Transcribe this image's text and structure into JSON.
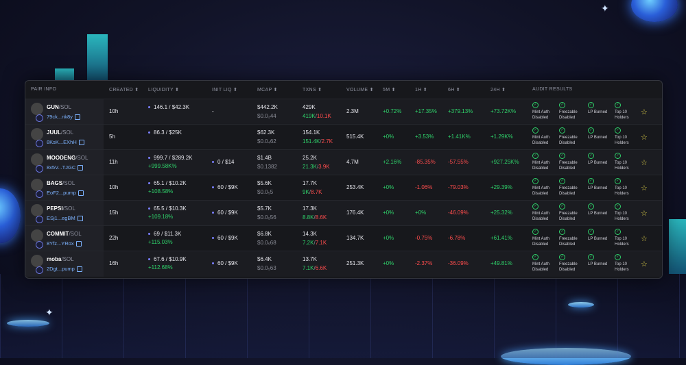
{
  "header": {
    "pair_info": "PAIR INFO",
    "created": "CREATED ⬍",
    "liquidity": "LIQUIDITY ⬍",
    "init_liq": "INIT LIQ ⬍",
    "mcap": "MCAP ⬍",
    "txns": "TXNS ⬍",
    "volume": "VOLUME ⬍",
    "m5": "5M ⬍",
    "h1": "1H ⬍",
    "h6": "6H ⬍",
    "h24": "24H ⬍",
    "audit": "AUDIT RESULTS"
  },
  "audit_labels": {
    "mint": [
      "Mint Auth",
      "Disabled"
    ],
    "freeze": [
      "Freezable",
      "Disabled"
    ],
    "lp": [
      "LP Burned",
      ""
    ],
    "top10": [
      "Top 10",
      "Holders"
    ]
  },
  "colors": {
    "positive": "#2fd16a",
    "negative": "#ff4d4d",
    "star": "#e8d84a"
  },
  "rows": [
    {
      "name": "GUN",
      "quote": "/SOL",
      "addr": "79ck...nk8y",
      "created": "10h",
      "liq": "146.1 / $42.3K",
      "liq_change": "",
      "init_liq": "-",
      "mcap": "$442.2K",
      "mcap_sub": "$0.0₃44",
      "txns": "429K",
      "buys": "419K",
      "sells": "10.1K",
      "volume": "2.3M",
      "m5": "+0.72%",
      "h1": "+17.35%",
      "h6": "+379.13%",
      "h24": "+73.72K%",
      "m5_neg": false,
      "h1_neg": false,
      "h6_neg": false,
      "h24_neg": false
    },
    {
      "name": "JUUL",
      "quote": "/SOL",
      "addr": "8KsK...EXhH",
      "created": "5h",
      "liq": "86.3 / $25K",
      "liq_change": "",
      "init_liq": "",
      "mcap": "$62.3K",
      "mcap_sub": "$0.0₄62",
      "txns": "154.1K",
      "buys": "151.4K",
      "sells": "2.7K",
      "volume": "515.4K",
      "m5": "+0%",
      "h1": "+3.53%",
      "h6": "+1.41K%",
      "h24": "+1.29K%",
      "m5_neg": false,
      "h1_neg": false,
      "h6_neg": false,
      "h24_neg": false
    },
    {
      "name": "MOODENG",
      "quote": "/SOL",
      "addr": "8x5V...TJGC",
      "created": "11h",
      "liq": "999.7 / $289.2K",
      "liq_change": "+999.58K%",
      "init_liq": "0 / $14",
      "mcap": "$1.4B",
      "mcap_sub": "$0.1382",
      "txns": "25.2K",
      "buys": "21.3K",
      "sells": "3.9K",
      "volume": "4.7M",
      "m5": "+2.16%",
      "h1": "-85.35%",
      "h6": "-57.55%",
      "h24": "+927.25K%",
      "m5_neg": false,
      "h1_neg": true,
      "h6_neg": true,
      "h24_neg": false
    },
    {
      "name": "BAGS",
      "quote": "/SOL",
      "addr": "EoF2...pump",
      "created": "10h",
      "liq": "65.1 / $10.2K",
      "liq_change": "+108.58%",
      "init_liq": "60 / $9K",
      "mcap": "$5.6K",
      "mcap_sub": "$0.0₅5",
      "txns": "17.7K",
      "buys": "9K",
      "sells": "8.7K",
      "volume": "253.4K",
      "m5": "+0%",
      "h1": "-1.06%",
      "h6": "-79.03%",
      "h24": "+29.39%",
      "m5_neg": false,
      "h1_neg": true,
      "h6_neg": true,
      "h24_neg": false
    },
    {
      "name": "PEPSI",
      "quote": "/SOL",
      "addr": "ESj1...egBM",
      "created": "15h",
      "liq": "65.5 / $10.3K",
      "liq_change": "+109.18%",
      "init_liq": "60 / $9K",
      "mcap": "$5.7K",
      "mcap_sub": "$0.0₅56",
      "txns": "17.3K",
      "buys": "8.8K",
      "sells": "8.6K",
      "volume": "176.4K",
      "m5": "+0%",
      "h1": "+0%",
      "h6": "-46.09%",
      "h24": "+25.32%",
      "m5_neg": false,
      "h1_neg": false,
      "h6_neg": true,
      "h24_neg": false
    },
    {
      "name": "COMMIT",
      "quote": "/SOL",
      "addr": "8Yfz...YRox",
      "created": "22h",
      "liq": "69 / $11.3K",
      "liq_change": "+115.03%",
      "init_liq": "60 / $9K",
      "mcap": "$6.8K",
      "mcap_sub": "$0.0₅68",
      "txns": "14.3K",
      "buys": "7.2K",
      "sells": "7.1K",
      "volume": "134.7K",
      "m5": "+0%",
      "h1": "-0.75%",
      "h6": "-6.78%",
      "h24": "+61.41%",
      "m5_neg": false,
      "h1_neg": true,
      "h6_neg": true,
      "h24_neg": false
    },
    {
      "name": "moba",
      "quote": "/SOL",
      "addr": "2Dgt...pump",
      "created": "16h",
      "liq": "67.6 / $10.9K",
      "liq_change": "+112.68%",
      "init_liq": "60 / $9K",
      "mcap": "$6.4K",
      "mcap_sub": "$0.0₅63",
      "txns": "13.7K",
      "buys": "7.1K",
      "sells": "6.6K",
      "volume": "251.3K",
      "m5": "+0%",
      "h1": "-2.37%",
      "h6": "-36.09%",
      "h24": "+49.81%",
      "m5_neg": false,
      "h1_neg": true,
      "h6_neg": true,
      "h24_neg": false
    }
  ]
}
